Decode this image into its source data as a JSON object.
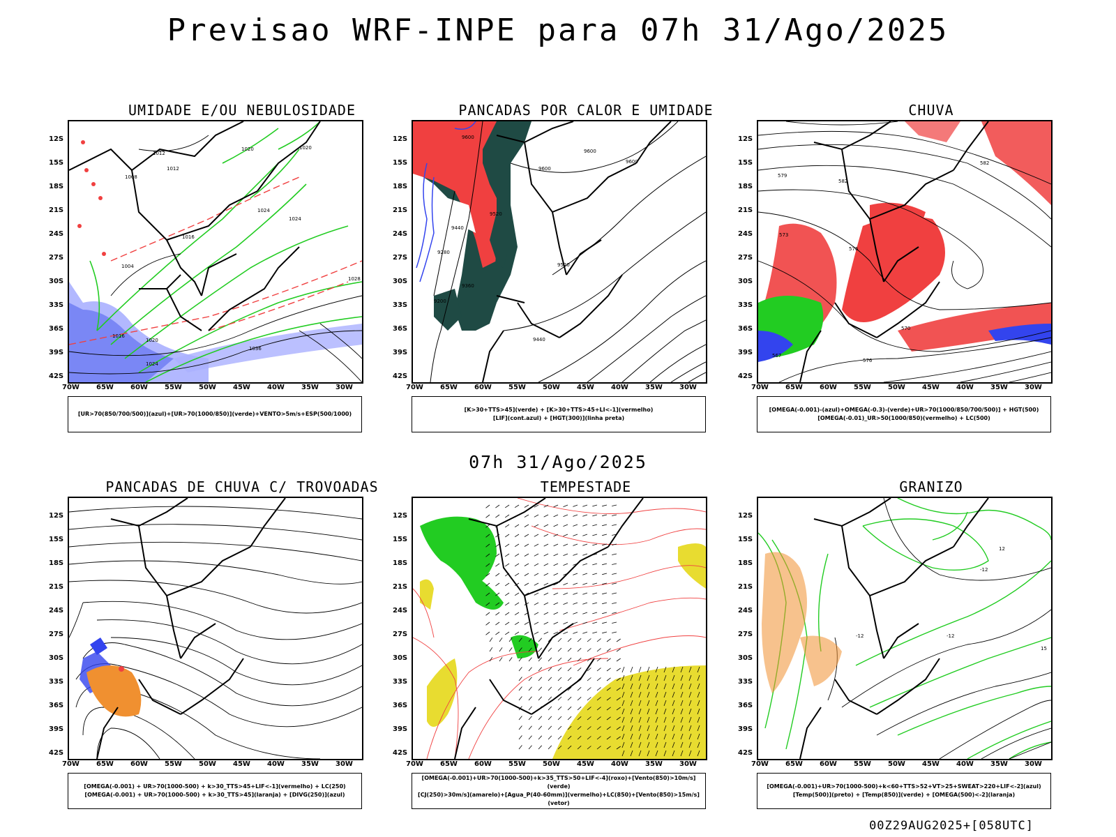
{
  "title": "Previsao WRF-INPE  para 07h 31/Ago/2025",
  "mid_time": "07h 31/Ago/2025",
  "footer": "00Z29AUG2025+[058UTC]",
  "lat_labels": [
    "12S",
    "15S",
    "18S",
    "21S",
    "24S",
    "27S",
    "30S",
    "33S",
    "36S",
    "39S",
    "42S"
  ],
  "lon_labels": [
    "70W",
    "65W",
    "60W",
    "55W",
    "50W",
    "45W",
    "40W",
    "35W",
    "30W"
  ],
  "panels": [
    {
      "title": "UMIDADE E/OU NEBULOSIDADE",
      "legend": [
        "[UR>70(850/700/500)](azul)+[UR>70(1000/850)](verde)+VENTO>5m/s+ESP(500/1000)"
      ]
    },
    {
      "title": "PANCADAS POR CALOR E UMIDADE",
      "legend": [
        "[K>30+TTS>45](verde) + [K>30+TTS>45+LI<-1](vermelho)",
        "[LIF](cont.azul) + [HGT(300)](linha preta)"
      ]
    },
    {
      "title": "CHUVA",
      "legend": [
        "[OMEGA(-0.001)-(azul)+OMEGA(-0.3)-(verde)+UR>70(1000/850/700/500)] + HGT(500)",
        "[OMEGA(-0.01)_UR>50(1000/850)(vermelho) + LC(500)"
      ]
    },
    {
      "title": "PANCADAS DE CHUVA C/ TROVOADAS",
      "legend": [
        "[OMEGA(-0.001) + UR>70(1000-500) + k>30_TTS>45+LIF<-1](vermelho) + LC(250)",
        "[OMEGA(-0.001) + UR>70(1000-500) + k>30_TTS>45](laranja) + [DIVG(250)](azul)"
      ]
    },
    {
      "title": "TEMPESTADE",
      "legend": [
        "[OMEGA(-0.001)+UR>70(1000-500)+k>35_TTS>50+LIF<-4](roxo)+[Vento(850)>10m/s](verde)",
        "[CJ(250)>30m/s](amarelo)+[Agua_P(40-60mm)](vermelho)+LC(850)+[Vento(850)>15m/s](vetor)"
      ]
    },
    {
      "title": "GRANIZO",
      "legend": [
        "[OMEGA(-0.001)+UR>70(1000-500)+k<60+TTS>52+VT>25+SWEAT>220+LIF<-2](azul)",
        "[Temp(500)](preto) + [Temp(850)](verde) + [OMEGA(500)<-2](laranja)"
      ]
    }
  ],
  "colors": {
    "red": "#f04040",
    "green": "#22cc22",
    "blue": "#3344ee",
    "darkteal": "#1f4a44",
    "yellow": "#e8dc30",
    "orange": "#f09030",
    "lightblue": "#aab0ff",
    "black": "#000000"
  },
  "contour_labels": {
    "p1": [
      "1012",
      "1012",
      "1008",
      "1020",
      "1020",
      "1024",
      "1024",
      "1016",
      "1004",
      "1020",
      "1024",
      "1036",
      "1028",
      "1016"
    ],
    "p2": [
      "9600",
      "9600",
      "9600",
      "9600",
      "9520",
      "9440",
      "9360",
      "9280",
      "9200",
      "9520",
      "9440"
    ],
    "p3": [
      "582",
      "582",
      "579",
      "576",
      "573",
      "570",
      "567",
      "576"
    ],
    "p6": [
      "-12",
      "-12",
      "-12",
      "15",
      "12"
    ]
  }
}
